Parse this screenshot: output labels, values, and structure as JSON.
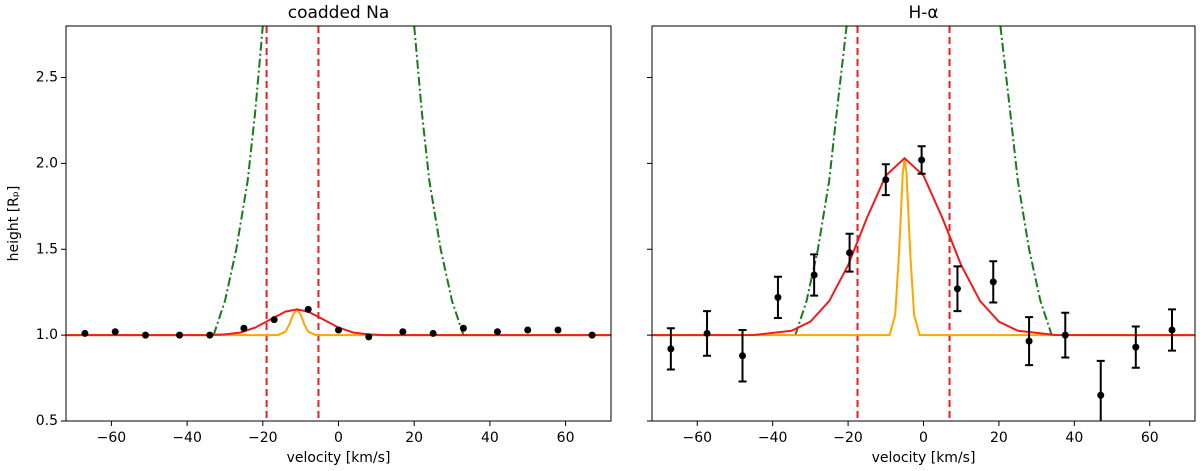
{
  "chart_data": [
    {
      "type": "line",
      "title": "coadded Na",
      "xlabel": "velocity [km/s]",
      "ylabel": "height [Rₚ]",
      "xlim": [
        -72,
        72
      ],
      "ylim": [
        0.5,
        2.8
      ],
      "xticks": [
        {
          "value": -60,
          "label": "−60"
        },
        {
          "value": -40,
          "label": "−40"
        },
        {
          "value": -20,
          "label": "−20"
        },
        0,
        20,
        40,
        60
      ],
      "yticks": [
        {
          "value": 0.5,
          "label": "0.5"
        },
        {
          "value": 1.0,
          "label": "1.0"
        },
        {
          "value": 1.5,
          "label": "1.5"
        },
        {
          "value": 2.0,
          "label": "2.0"
        },
        {
          "value": 2.5,
          "label": "2.5"
        }
      ],
      "vlines": {
        "color": "#ee1c1c",
        "values": [
          -19,
          -5.3
        ]
      },
      "series": [
        {
          "style": "dashdot",
          "color": "#1a7a1a",
          "x": [
            -33,
            -30,
            -27,
            -24,
            -22,
            -20,
            0,
            20,
            22,
            24,
            27,
            30,
            33
          ],
          "values": [
            1.0,
            1.2,
            1.5,
            1.9,
            2.3,
            2.8,
            null,
            2.8,
            2.3,
            1.9,
            1.5,
            1.2,
            1.0
          ]
        },
        {
          "style": "solid",
          "color": "#ffa500",
          "x": [
            -72,
            -16,
            -14,
            -13,
            -12,
            -11,
            -10,
            -9,
            -8,
            -6,
            72
          ],
          "values": [
            1.0,
            1.0,
            1.02,
            1.062,
            1.12,
            1.15,
            1.12,
            1.062,
            1.02,
            1.0,
            1.0
          ]
        },
        {
          "style": "solid",
          "color": "#ee1c1c",
          "x": [
            -72,
            -35,
            -30,
            -26,
            -22,
            -18,
            -14,
            -11,
            -8,
            -4,
            0,
            4,
            8,
            12,
            72
          ],
          "values": [
            1.0,
            1.0,
            1.004,
            1.015,
            1.044,
            1.091,
            1.137,
            1.15,
            1.137,
            1.091,
            1.044,
            1.015,
            1.004,
            1.0,
            1.0
          ]
        },
        {
          "style": "markers",
          "color": "#000000",
          "x": [
            -67,
            -59,
            -51,
            -42,
            -34,
            -25,
            -17,
            -8,
            0,
            8,
            17,
            25,
            33,
            42,
            50,
            58,
            67
          ],
          "values": [
            1.01,
            1.02,
            1.0,
            1.0,
            1.0,
            1.04,
            1.09,
            1.15,
            1.03,
            0.99,
            1.02,
            1.01,
            1.04,
            1.02,
            1.03,
            1.03,
            1.0
          ]
        }
      ]
    },
    {
      "type": "line",
      "title": "H-α",
      "xlabel": "velocity [km/s]",
      "xlim": [
        -72,
        72
      ],
      "ylim": [
        0.5,
        2.8
      ],
      "xticks": [
        {
          "value": -60,
          "label": "−60"
        },
        {
          "value": -40,
          "label": "−40"
        },
        {
          "value": -20,
          "label": "−20"
        },
        0,
        20,
        40,
        60
      ],
      "yticks": [
        0.5,
        1.0,
        1.5,
        2.0,
        2.5
      ],
      "vlines": {
        "color": "#ee1c1c",
        "values": [
          -17.5,
          6.9
        ]
      },
      "series": [
        {
          "style": "dashdot",
          "color": "#1a7a1a",
          "x": [
            -34,
            -31,
            -28,
            -25,
            -23,
            -20.4,
            0,
            20.4,
            23,
            25,
            28,
            31,
            34
          ],
          "values": [
            1.0,
            1.2,
            1.5,
            1.9,
            2.3,
            2.8,
            null,
            2.8,
            2.3,
            1.9,
            1.5,
            1.2,
            1.0
          ]
        },
        {
          "style": "solid",
          "color": "#ffa500",
          "x": [
            -72,
            -9,
            -7.5,
            -6.5,
            -5.5,
            -5,
            -4.5,
            -3.5,
            -2.5,
            -1,
            72
          ],
          "values": [
            1.0,
            1.0,
            1.118,
            1.472,
            1.944,
            2.03,
            1.944,
            1.472,
            1.118,
            1.0,
            1.0
          ]
        },
        {
          "style": "solid",
          "color": "#ee1c1c",
          "x": [
            -72,
            -45,
            -35,
            -30,
            -25,
            -20,
            -15,
            -10,
            -5,
            0,
            5,
            10,
            15,
            20,
            25,
            35,
            72
          ],
          "values": [
            1.0,
            1.001,
            1.025,
            1.078,
            1.198,
            1.407,
            1.682,
            1.929,
            2.03,
            1.929,
            1.682,
            1.407,
            1.198,
            1.078,
            1.025,
            1.001,
            1.0
          ]
        },
        {
          "style": "errorbar",
          "color": "#000000",
          "x": [
            -67,
            -57.4,
            -48,
            -38.6,
            -29,
            -19.6,
            -10,
            -0.5,
            9,
            18.5,
            28,
            37.6,
            47,
            56.3,
            65.9
          ],
          "values": [
            0.92,
            1.01,
            0.88,
            1.22,
            1.35,
            1.48,
            1.905,
            2.02,
            1.27,
            1.31,
            0.965,
            1.0,
            0.65,
            0.93,
            1.03
          ],
          "yerr": [
            0.12,
            0.13,
            0.15,
            0.12,
            0.12,
            0.11,
            0.09,
            0.08,
            0.13,
            0.12,
            0.14,
            0.13,
            0.2,
            0.12,
            0.12
          ]
        }
      ]
    }
  ]
}
